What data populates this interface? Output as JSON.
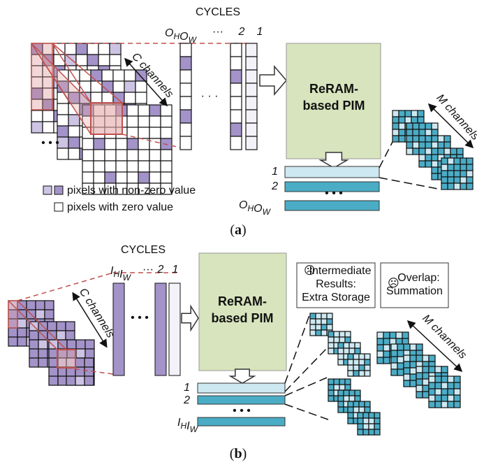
{
  "panel_a": {
    "header": "CYCLES",
    "cycle_first": [
      {
        "base": "O",
        "sub": "H"
      },
      {
        "base": "O",
        "sub": "W"
      }
    ],
    "cycle_ellipsis": "···",
    "cycle_two": "2",
    "cycle_one": "1",
    "column_ellipsis": "· · ·",
    "input_ellipsis": "• • •",
    "input_label": "C channels",
    "pim_lines": [
      "ReRAM-",
      "based PIM"
    ],
    "output_label": "M channels",
    "row_labels": [
      "1",
      "2"
    ],
    "row_ellipsis": "• • •",
    "row_last": [
      {
        "base": "O",
        "sub": "H"
      },
      {
        "base": "O",
        "sub": "W"
      }
    ],
    "legend": [
      "pixels with non-zero value",
      "pixels with zero value"
    ],
    "caption": [
      "(",
      "a",
      ")"
    ]
  },
  "panel_b": {
    "header": "CYCLES",
    "cycle_first": [
      {
        "base": "I",
        "sub": "H"
      },
      {
        "base": "I",
        "sub": "W"
      }
    ],
    "cycle_ellipsis": "···",
    "cycle_two": "2",
    "cycle_one": "1",
    "column_ellipsis": "• • •",
    "input_label": "C channels",
    "pim_lines": [
      "ReRAM-",
      "based PIM"
    ],
    "output_label": "M channels",
    "row_labels": [
      "1",
      "2"
    ],
    "row_ellipsis": "• • •",
    "row_last": [
      {
        "base": "I",
        "sub": "H"
      },
      {
        "base": "I",
        "sub": "W"
      }
    ],
    "notes": [
      {
        "icon": "☹",
        "lines": [
          "Intermediate",
          "Results:",
          "Extra Storage"
        ]
      },
      {
        "icon": "☹",
        "lines": [
          "Overlap:",
          "Summation"
        ]
      }
    ],
    "caption": [
      "(",
      "b",
      ")"
    ]
  }
}
